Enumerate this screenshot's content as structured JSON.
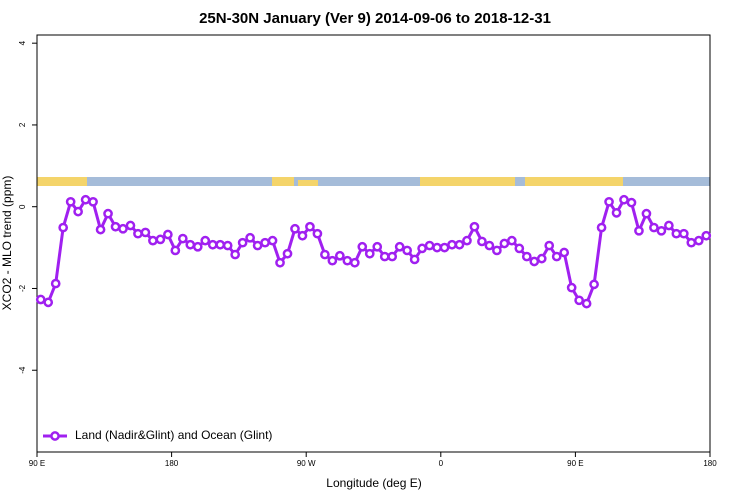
{
  "chart_data": {
    "type": "line",
    "title": "25N-30N January (Ver 9)   2014-09-06 to 2018-12-31",
    "x_label": "Longitude (deg E)",
    "y_label": "XCO2 - MLO trend (ppm)",
    "xlim": [
      90,
      540
    ],
    "xticks": [
      {
        "value": 90,
        "label": "90 E"
      },
      {
        "value": 180,
        "label": "180"
      },
      {
        "value": 270,
        "label": "90 W"
      },
      {
        "value": 360,
        "label": "0"
      },
      {
        "value": 450,
        "label": "90 E"
      },
      {
        "value": 540,
        "label": "180"
      }
    ],
    "ylim": [
      -6,
      4.2
    ],
    "yticks": [
      4,
      2,
      0,
      -2,
      -4
    ],
    "x": [
      92.5,
      97.5,
      102.5,
      107.5,
      112.5,
      117.5,
      122.5,
      127.5,
      132.5,
      137.5,
      142.5,
      147.5,
      152.5,
      157.5,
      162.5,
      167.5,
      172.5,
      177.5,
      182.5,
      187.5,
      192.5,
      197.5,
      202.5,
      207.5,
      212.5,
      217.5,
      222.5,
      227.5,
      232.5,
      237.5,
      242.5,
      247.5,
      252.5,
      257.5,
      262.5,
      267.5,
      272.5,
      277.5,
      282.5,
      287.5,
      292.5,
      297.5,
      302.5,
      307.5,
      312.5,
      317.5,
      322.5,
      327.5,
      332.5,
      337.5,
      342.5,
      347.5,
      352.5,
      357.5,
      362.5,
      367.5,
      372.5,
      377.5,
      382.5,
      387.5,
      392.5,
      397.5,
      402.5,
      407.5,
      412.5,
      417.5,
      422.5,
      427.5,
      432.5,
      437.5,
      442.5,
      447.5,
      452.5,
      457.5,
      462.5,
      467.5,
      472.5,
      477.5,
      482.5,
      487.5,
      492.5,
      497.5,
      502.5,
      507.5,
      512.5,
      517.5,
      522.5,
      527.5,
      532.5,
      537.5
    ],
    "series": [
      {
        "name": "Land (Nadir&Glint) and Ocean (Glint)",
        "color": "#a020f0",
        "values": [
          -2.27,
          -2.34,
          -1.88,
          -0.51,
          0.12,
          -0.12,
          0.17,
          0.12,
          -0.56,
          -0.17,
          -0.49,
          -0.54,
          -0.46,
          -0.66,
          -0.63,
          -0.83,
          -0.8,
          -0.68,
          -1.07,
          -0.78,
          -0.93,
          -0.98,
          -0.83,
          -0.93,
          -0.93,
          -0.95,
          -1.17,
          -0.88,
          -0.76,
          -0.95,
          -0.88,
          -0.83,
          -1.37,
          -1.15,
          -0.54,
          -0.71,
          -0.49,
          -0.66,
          -1.17,
          -1.32,
          -1.2,
          -1.32,
          -1.37,
          -0.98,
          -1.15,
          -0.98,
          -1.22,
          -1.22,
          -0.98,
          -1.07,
          -1.29,
          -1.02,
          -0.95,
          -1.0,
          -1.0,
          -0.93,
          -0.93,
          -0.83,
          -0.49,
          -0.85,
          -0.95,
          -1.07,
          -0.9,
          -0.83,
          -1.02,
          -1.22,
          -1.34,
          -1.27,
          -0.95,
          -1.22,
          -1.12,
          -1.98,
          -2.29,
          -2.37,
          -1.9,
          -0.51,
          0.12,
          -0.15,
          0.17,
          0.1,
          -0.59,
          -0.17,
          -0.51,
          -0.59,
          -0.46,
          -0.66,
          -0.66,
          -0.88,
          -0.83,
          -0.71
        ]
      }
    ],
    "legend": "bottom-left"
  }
}
